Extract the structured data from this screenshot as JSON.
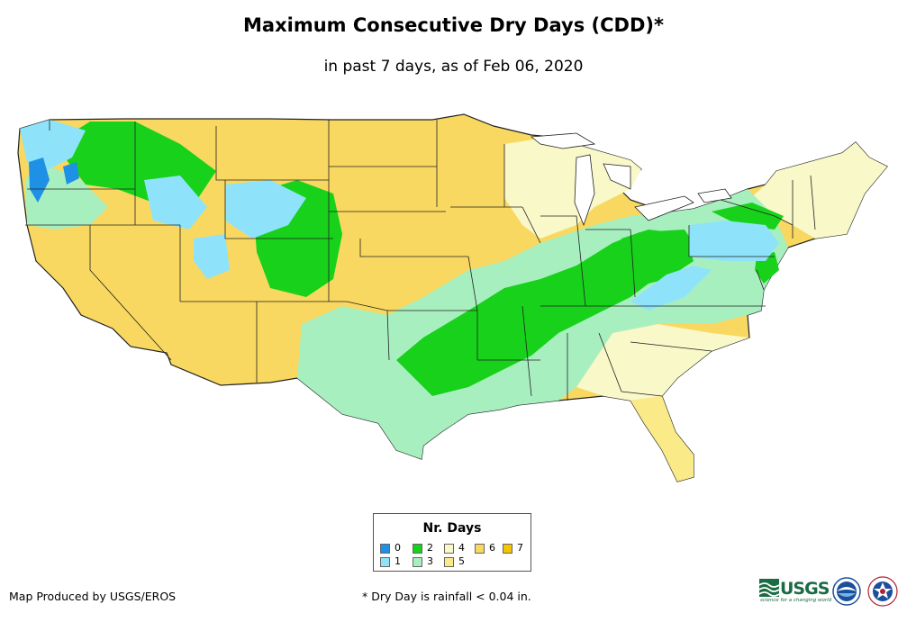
{
  "title": "Maximum Consecutive Dry Days (CDD)*",
  "subtitle": "in past 7 days, as of Feb 06, 2020",
  "legend": {
    "title": "Nr. Days",
    "items": [
      {
        "label": "0",
        "color": "#1e90e6"
      },
      {
        "label": "1",
        "color": "#8ee3fa"
      },
      {
        "label": "2",
        "color": "#17d11a"
      },
      {
        "label": "3",
        "color": "#a8efc0"
      },
      {
        "label": "4",
        "color": "#f8f8c8"
      },
      {
        "label": "5",
        "color": "#fbea88"
      },
      {
        "label": "6",
        "color": "#f8d860"
      },
      {
        "label": "7",
        "color": "#f5c400"
      }
    ]
  },
  "credit": "Map Produced by USGS/EROS",
  "footnote": "* Dry Day is rainfall < 0.04 in.",
  "logos": {
    "usgs": "USGS",
    "usgs_tagline": "science for a changing world",
    "noaa": "NOAA",
    "nws": "NATIONAL WEATHER SERVICE"
  },
  "colors": {
    "border": "#222222",
    "background": "#ffffff"
  }
}
